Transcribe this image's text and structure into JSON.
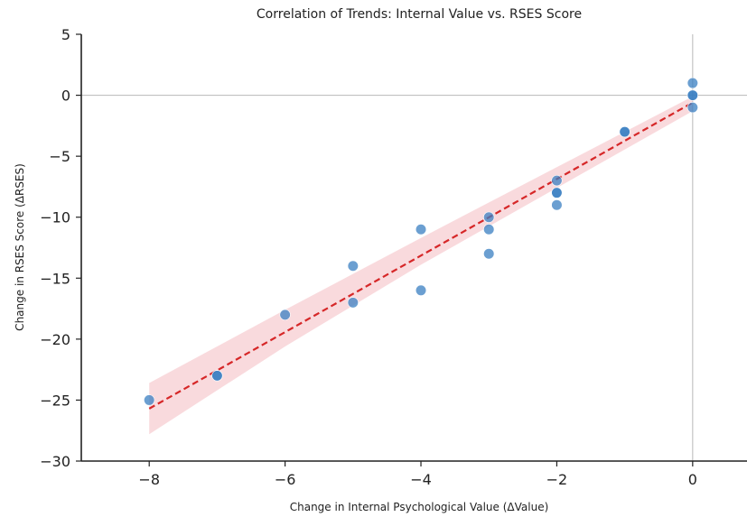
{
  "chart_data": {
    "type": "scatter",
    "title": "Correlation of Trends: Internal Value vs. RSES Score",
    "xlabel": "Change in Internal Psychological Value (ΔValue)",
    "ylabel": "Change in RSES Score (ΔRSES)",
    "xlim": [
      -9,
      0.8
    ],
    "ylim": [
      -30,
      5
    ],
    "xticks": [
      -8,
      -6,
      -4,
      -2,
      0
    ],
    "xtick_labels": [
      "−8",
      "−6",
      "−4",
      "−2",
      "0"
    ],
    "yticks": [
      5,
      0,
      -5,
      -10,
      -15,
      -20,
      -25,
      -30
    ],
    "ytick_labels": [
      "5",
      "0",
      "−5",
      "−10",
      "−15",
      "−20",
      "−25",
      "−30"
    ],
    "grid": false,
    "reference_lines": {
      "y": 0,
      "x": 0
    },
    "points": [
      {
        "x": -8,
        "y": -25
      },
      {
        "x": -7,
        "y": -23
      },
      {
        "x": -7,
        "y": -23
      },
      {
        "x": -6,
        "y": -18
      },
      {
        "x": -5,
        "y": -14
      },
      {
        "x": -5,
        "y": -17
      },
      {
        "x": -4,
        "y": -11
      },
      {
        "x": -4,
        "y": -16
      },
      {
        "x": -3,
        "y": -10
      },
      {
        "x": -3,
        "y": -11
      },
      {
        "x": -3,
        "y": -13
      },
      {
        "x": -2,
        "y": -7
      },
      {
        "x": -2,
        "y": -8
      },
      {
        "x": -2,
        "y": -8
      },
      {
        "x": -2,
        "y": -9
      },
      {
        "x": -1,
        "y": -3
      },
      {
        "x": -1,
        "y": -3
      },
      {
        "x": 0,
        "y": 1
      },
      {
        "x": 0,
        "y": 0
      },
      {
        "x": 0,
        "y": 0
      },
      {
        "x": 0,
        "y": -1
      }
    ],
    "regression": {
      "x_range": [
        -8,
        0
      ],
      "line": [
        [
          -8,
          -25.7
        ],
        [
          0,
          -0.6
        ]
      ],
      "ci_upper": [
        [
          -8,
          -23.6
        ],
        [
          -6,
          -17.6
        ],
        [
          -4,
          -11.7
        ],
        [
          -2,
          -5.9
        ],
        [
          0,
          -0.1
        ]
      ],
      "ci_lower": [
        [
          -8,
          -27.8
        ],
        [
          -6,
          -20.6
        ],
        [
          -4,
          -13.9
        ],
        [
          -2,
          -7.6
        ],
        [
          0,
          -1.3
        ]
      ]
    },
    "colors": {
      "points": "#3a7fc1",
      "fit_line": "#d62728",
      "ci_band": "#f4b6bc",
      "reference_lines": "#b8b8b8"
    }
  }
}
